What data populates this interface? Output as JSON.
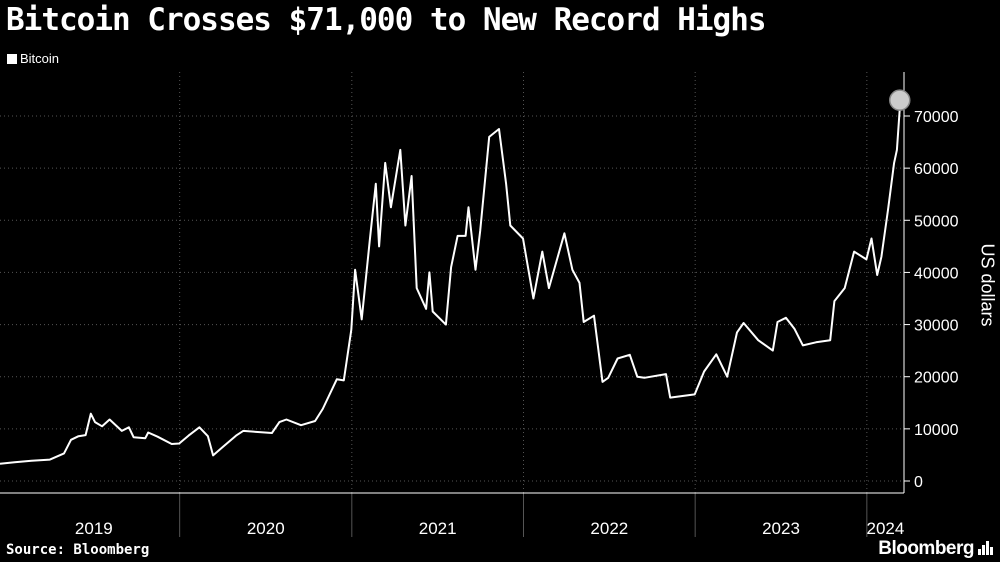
{
  "title": "Bitcoin Crosses $71,000 to New Record Highs",
  "legend_label": "Bitcoin",
  "source": "Source: Bloomberg",
  "brand": "Bloomberg",
  "colors": {
    "background": "#000000",
    "line": "#ffffff",
    "grid": "#555555",
    "marker": "#cccccc"
  },
  "chart_data": {
    "type": "line",
    "ylabel": "US dollars",
    "ylim": [
      0,
      72000
    ],
    "yticks": [
      0,
      10000,
      20000,
      30000,
      40000,
      50000,
      60000,
      70000
    ],
    "xlim": [
      "2018-12-15",
      "2024-03-20"
    ],
    "xtick_labels": [
      "2019",
      "2020",
      "2021",
      "2022",
      "2023",
      "2024"
    ],
    "grid": true,
    "legend": "top-left",
    "highlight": {
      "date": "2024-03-11",
      "value": 71500
    },
    "series": [
      {
        "name": "Bitcoin",
        "points": [
          [
            "2018-12-15",
            3300
          ],
          [
            "2019-01-15",
            3600
          ],
          [
            "2019-02-20",
            3900
          ],
          [
            "2019-03-31",
            4100
          ],
          [
            "2019-04-30",
            5300
          ],
          [
            "2019-05-15",
            7900
          ],
          [
            "2019-05-31",
            8600
          ],
          [
            "2019-06-15",
            8800
          ],
          [
            "2019-06-26",
            12900
          ],
          [
            "2019-07-05",
            11300
          ],
          [
            "2019-07-20",
            10500
          ],
          [
            "2019-08-05",
            11800
          ],
          [
            "2019-08-31",
            9600
          ],
          [
            "2019-09-15",
            10300
          ],
          [
            "2019-09-25",
            8400
          ],
          [
            "2019-10-20",
            8200
          ],
          [
            "2019-10-26",
            9300
          ],
          [
            "2019-11-15",
            8500
          ],
          [
            "2019-12-15",
            7100
          ],
          [
            "2019-12-31",
            7200
          ],
          [
            "2020-01-20",
            8700
          ],
          [
            "2020-02-12",
            10300
          ],
          [
            "2020-03-01",
            8600
          ],
          [
            "2020-03-12",
            4900
          ],
          [
            "2020-03-31",
            6400
          ],
          [
            "2020-04-30",
            8700
          ],
          [
            "2020-05-15",
            9600
          ],
          [
            "2020-06-15",
            9400
          ],
          [
            "2020-07-15",
            9200
          ],
          [
            "2020-07-31",
            11300
          ],
          [
            "2020-08-15",
            11800
          ],
          [
            "2020-09-15",
            10700
          ],
          [
            "2020-10-15",
            11500
          ],
          [
            "2020-10-31",
            13800
          ],
          [
            "2020-11-30",
            19500
          ],
          [
            "2020-12-15",
            19300
          ],
          [
            "2020-12-31",
            29000
          ],
          [
            "2021-01-08",
            40500
          ],
          [
            "2021-01-22",
            31000
          ],
          [
            "2021-02-08",
            46000
          ],
          [
            "2021-02-21",
            57000
          ],
          [
            "2021-02-28",
            45000
          ],
          [
            "2021-03-13",
            61000
          ],
          [
            "2021-03-25",
            52500
          ],
          [
            "2021-04-14",
            63500
          ],
          [
            "2021-04-25",
            49000
          ],
          [
            "2021-05-08",
            58500
          ],
          [
            "2021-05-19",
            37000
          ],
          [
            "2021-06-08",
            33000
          ],
          [
            "2021-06-15",
            40000
          ],
          [
            "2021-06-22",
            32500
          ],
          [
            "2021-07-20",
            30000
          ],
          [
            "2021-07-31",
            41000
          ],
          [
            "2021-08-14",
            47000
          ],
          [
            "2021-08-31",
            47000
          ],
          [
            "2021-09-06",
            52500
          ],
          [
            "2021-09-21",
            40500
          ],
          [
            "2021-10-01",
            48000
          ],
          [
            "2021-10-20",
            66000
          ],
          [
            "2021-11-10",
            67500
          ],
          [
            "2021-11-25",
            57000
          ],
          [
            "2021-12-04",
            49000
          ],
          [
            "2021-12-31",
            46500
          ],
          [
            "2022-01-22",
            35000
          ],
          [
            "2022-02-10",
            44000
          ],
          [
            "2022-02-24",
            37000
          ],
          [
            "2022-03-29",
            47500
          ],
          [
            "2022-04-15",
            40500
          ],
          [
            "2022-04-30",
            38000
          ],
          [
            "2022-05-09",
            30500
          ],
          [
            "2022-05-31",
            31700
          ],
          [
            "2022-06-18",
            19000
          ],
          [
            "2022-06-30",
            19800
          ],
          [
            "2022-07-20",
            23500
          ],
          [
            "2022-08-15",
            24200
          ],
          [
            "2022-08-31",
            20000
          ],
          [
            "2022-09-15",
            19800
          ],
          [
            "2022-10-31",
            20500
          ],
          [
            "2022-11-09",
            16000
          ],
          [
            "2022-12-31",
            16600
          ],
          [
            "2023-01-20",
            21000
          ],
          [
            "2023-02-15",
            24300
          ],
          [
            "2023-03-10",
            20000
          ],
          [
            "2023-03-31",
            28500
          ],
          [
            "2023-04-14",
            30300
          ],
          [
            "2023-05-15",
            27000
          ],
          [
            "2023-06-15",
            25000
          ],
          [
            "2023-06-25",
            30500
          ],
          [
            "2023-07-13",
            31300
          ],
          [
            "2023-07-31",
            29200
          ],
          [
            "2023-08-18",
            26000
          ],
          [
            "2023-09-15",
            26600
          ],
          [
            "2023-10-15",
            27000
          ],
          [
            "2023-10-24",
            34500
          ],
          [
            "2023-11-15",
            37000
          ],
          [
            "2023-12-05",
            44000
          ],
          [
            "2023-12-31",
            42500
          ],
          [
            "2024-01-11",
            46500
          ],
          [
            "2024-01-23",
            39500
          ],
          [
            "2024-02-01",
            43000
          ],
          [
            "2024-02-15",
            52000
          ],
          [
            "2024-02-28",
            61000
          ],
          [
            "2024-03-05",
            63500
          ],
          [
            "2024-03-11",
            71500
          ]
        ]
      }
    ]
  }
}
